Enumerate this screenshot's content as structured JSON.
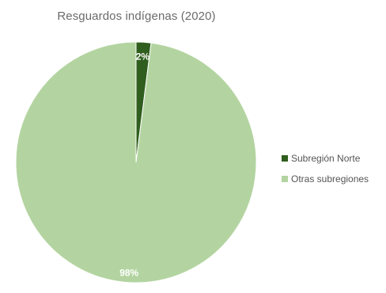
{
  "chart_data": {
    "type": "pie",
    "title": "Resguardos indígenas (2020)",
    "slices": [
      {
        "label": "Subregión Norte",
        "value": 2,
        "display": "2%",
        "color": "#2f5e1e"
      },
      {
        "label": "Otras subregiones",
        "value": 98,
        "display": "98%",
        "color": "#b3d4a0"
      }
    ],
    "legend_position": "right"
  }
}
